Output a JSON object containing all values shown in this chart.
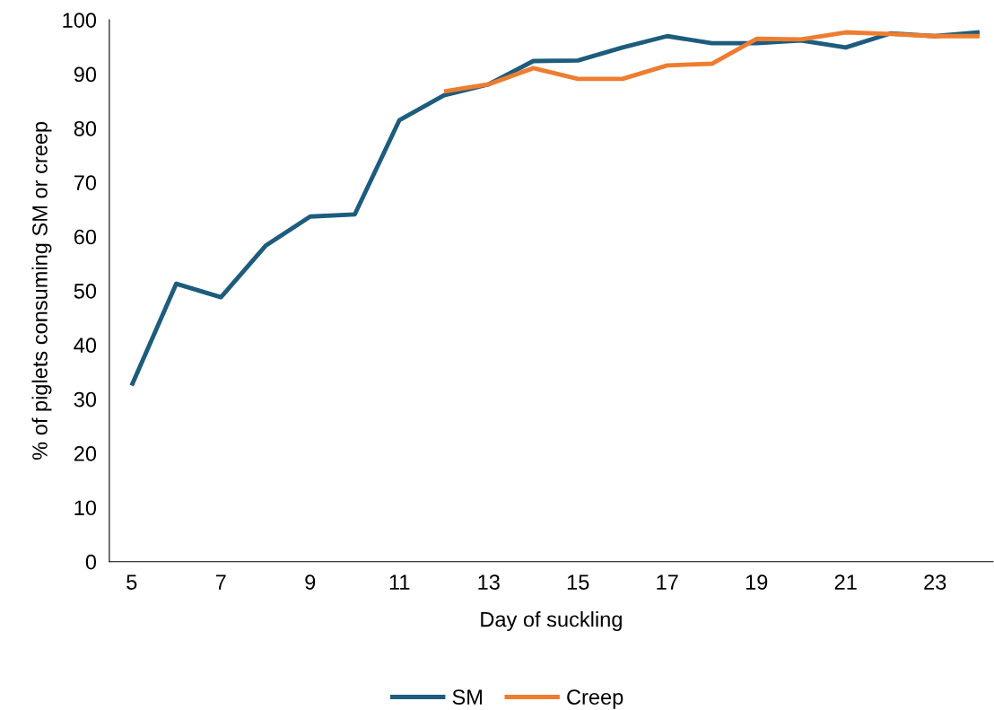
{
  "chart_data": {
    "type": "line",
    "xlabel": "Day of suckling",
    "ylabel": "% of piglets consuming SM or creep",
    "x": [
      5,
      6,
      7,
      8,
      9,
      10,
      11,
      12,
      13,
      14,
      15,
      16,
      17,
      18,
      19,
      20,
      21,
      22,
      23,
      24
    ],
    "xlim": [
      4.5,
      24.3
    ],
    "xticks": [
      5,
      7,
      9,
      11,
      13,
      15,
      17,
      19,
      21,
      23
    ],
    "ylim": [
      0,
      100
    ],
    "yticks": [
      0,
      10,
      20,
      30,
      40,
      50,
      60,
      70,
      80,
      90,
      100
    ],
    "grid": false,
    "legend": "bottom",
    "marker": "none",
    "line_style": "solid",
    "series": [
      {
        "name": "SM",
        "color": "#1d5c7c",
        "values": [
          32.5,
          51.3,
          48.8,
          58.3,
          63.7,
          64.1,
          81.5,
          86.1,
          88.1,
          92.4,
          92.5,
          94.9,
          97.0,
          95.7,
          95.7,
          96.2,
          94.9,
          97.5,
          97.0,
          97.7
        ]
      },
      {
        "name": "Creep",
        "color": "#ed7d31",
        "values": [
          null,
          null,
          null,
          null,
          null,
          null,
          null,
          86.8,
          88.1,
          91.1,
          89.1,
          89.1,
          91.6,
          91.9,
          96.5,
          96.4,
          97.7,
          97.4,
          97.0,
          97.0
        ]
      }
    ]
  }
}
